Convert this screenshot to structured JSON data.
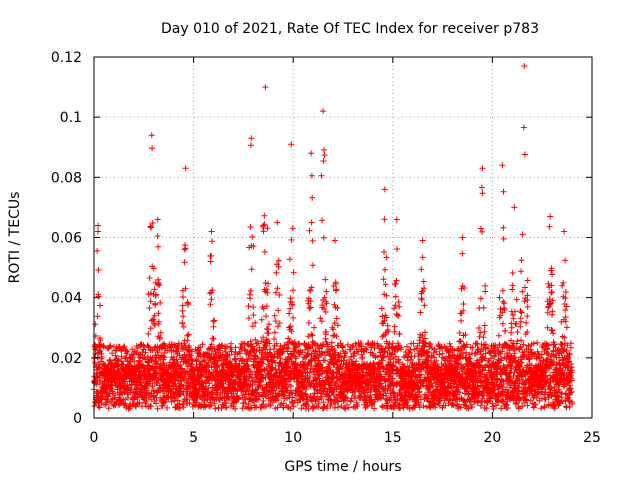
{
  "chart_data": {
    "type": "scatter",
    "title": "Day 010 of 2021, Rate Of TEC Index for receiver p783",
    "xlabel": "GPS time / hours",
    "ylabel": "ROTI / TECUs",
    "xlim": [
      0,
      25
    ],
    "ylim": [
      0,
      0.12
    ],
    "xticks": [
      0,
      5,
      10,
      15,
      20,
      25
    ],
    "yticks": [
      0,
      0.02,
      0.04,
      0.06,
      0.08,
      0.1,
      0.12
    ],
    "xtick_labels": [
      "0",
      "5",
      "10",
      "15",
      "20",
      "25"
    ],
    "ytick_labels": [
      "0",
      "0.02",
      "0.04",
      "0.06",
      "0.08",
      "0.1",
      "0.12"
    ],
    "grid": true,
    "marker": "+",
    "color": "#ff0000",
    "x_data_range": [
      0,
      24
    ],
    "baseline_level": 0.012,
    "peaks": [
      {
        "x": 0.2,
        "y": 0.064
      },
      {
        "x": 2.9,
        "y": 0.094
      },
      {
        "x": 3.2,
        "y": 0.066
      },
      {
        "x": 4.6,
        "y": 0.083
      },
      {
        "x": 5.9,
        "y": 0.062
      },
      {
        "x": 7.9,
        "y": 0.093
      },
      {
        "x": 8.6,
        "y": 0.11
      },
      {
        "x": 9.2,
        "y": 0.065
      },
      {
        "x": 9.9,
        "y": 0.091
      },
      {
        "x": 10.9,
        "y": 0.088
      },
      {
        "x": 11.5,
        "y": 0.102
      },
      {
        "x": 12.1,
        "y": 0.059
      },
      {
        "x": 14.6,
        "y": 0.076
      },
      {
        "x": 15.2,
        "y": 0.066
      },
      {
        "x": 16.5,
        "y": 0.059
      },
      {
        "x": 18.5,
        "y": 0.06
      },
      {
        "x": 19.5,
        "y": 0.083
      },
      {
        "x": 20.5,
        "y": 0.084
      },
      {
        "x": 21.1,
        "y": 0.07
      },
      {
        "x": 21.6,
        "y": 0.117
      },
      {
        "x": 22.9,
        "y": 0.067
      },
      {
        "x": 23.6,
        "y": 0.062
      }
    ]
  }
}
